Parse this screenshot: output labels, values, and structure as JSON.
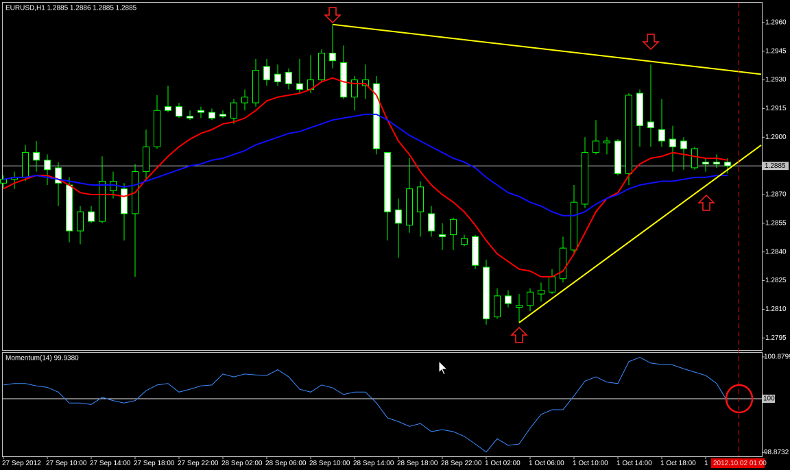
{
  "chart_data": [
    {
      "type": "candlestick",
      "title": "EURUSD,H1  1.2885 1.2886 1.2885 1.2885",
      "categories": [
        "27 Sep 2012",
        null,
        null,
        null,
        "27 Sep 10:00",
        null,
        null,
        null,
        "27 Sep 14:00",
        null,
        null,
        null,
        "27 Sep 18:00",
        null,
        null,
        null,
        "27 Sep 22:00",
        null,
        null,
        null,
        "28 Sep 02:00",
        null,
        null,
        null,
        "28 Sep 06:00",
        null,
        null,
        null,
        "28 Sep 10:00",
        null,
        null,
        null,
        "28 Sep 14:00",
        null,
        null,
        null,
        "28 Sep 18:00",
        null,
        null,
        null,
        "28 Sep 22:00",
        null,
        null,
        null,
        "1 Oct 02:00",
        null,
        null,
        null,
        "1 Oct 06:00",
        null,
        null,
        null,
        "1 Oct 10:00",
        null,
        null,
        null,
        "1 Oct 14:00",
        null,
        null,
        null,
        "1 Oct 18:00",
        null,
        null,
        null,
        "1",
        null,
        null
      ],
      "open": [
        1.2876,
        1.2878,
        1.2879,
        1.2892,
        1.2888,
        1.2884,
        1.2875,
        1.2851,
        1.2861,
        1.2856,
        1.2872,
        1.2873,
        1.286,
        1.2882,
        1.2895,
        1.2916,
        1.2916,
        1.2911,
        1.2914,
        1.2913,
        1.2912,
        1.291,
        1.2918,
        1.2918,
        1.2937,
        1.2933,
        1.2934,
        1.2928,
        1.2925,
        1.293,
        1.2944,
        1.2939,
        1.2921,
        1.2927,
        1.2928,
        1.2892,
        1.2862,
        1.2854,
        1.2861,
        1.286,
        1.2849,
        1.2849,
        1.2844,
        1.2848,
        1.2832,
        1.2806,
        1.2817,
        1.2811,
        1.2812,
        1.2818,
        1.2819,
        1.2826,
        1.2841,
        1.2865,
        1.2892,
        1.2897,
        1.2898,
        1.2881,
        1.2923,
        1.2908,
        1.2904,
        1.2899,
        1.2898,
        1.2884,
        1.2887,
        1.2887,
        1.2887
      ],
      "high": [
        1.288,
        1.2882,
        1.2896,
        1.2898,
        1.2891,
        1.2887,
        1.2879,
        1.2864,
        1.2864,
        1.289,
        1.2882,
        1.2876,
        1.2886,
        1.2904,
        1.2922,
        1.2927,
        1.2918,
        1.2914,
        1.2916,
        1.2915,
        1.2914,
        1.292,
        1.2925,
        1.2941,
        1.2941,
        1.2938,
        1.2936,
        1.2941,
        1.2943,
        1.2946,
        1.2959,
        1.2948,
        1.2932,
        1.2938,
        1.2932,
        1.2892,
        1.2868,
        1.2889,
        1.2877,
        1.2864,
        1.2855,
        1.2858,
        1.2849,
        1.2849,
        1.2836,
        1.2821,
        1.282,
        1.2818,
        1.2821,
        1.2824,
        1.2831,
        1.2848,
        1.2875,
        1.29,
        1.2909,
        1.29,
        1.2899,
        1.2923,
        1.2925,
        1.2938,
        1.292,
        1.2906,
        1.29,
        1.2895,
        1.2889,
        1.2891,
        1.2889
      ],
      "low": [
        1.2873,
        1.2873,
        1.2877,
        1.2882,
        1.2875,
        1.2864,
        1.2845,
        1.2844,
        1.2855,
        1.2855,
        1.2868,
        1.2846,
        1.2827,
        1.2877,
        1.2894,
        1.2913,
        1.291,
        1.2909,
        1.291,
        1.2909,
        1.291,
        1.2907,
        1.2914,
        1.2916,
        1.2927,
        1.2927,
        1.2925,
        1.2923,
        1.2923,
        1.2929,
        1.2936,
        1.292,
        1.2914,
        1.292,
        1.2891,
        1.2846,
        1.2837,
        1.285,
        1.2848,
        1.2848,
        1.2841,
        1.2841,
        1.2843,
        1.2831,
        1.2802,
        1.2805,
        1.2811,
        1.2803,
        1.2809,
        1.2814,
        1.2818,
        1.2824,
        1.2839,
        1.2863,
        1.2891,
        1.2891,
        1.288,
        1.2875,
        1.2895,
        1.2895,
        1.2895,
        1.2882,
        1.2883,
        1.2883,
        1.2882,
        1.2884,
        1.2881
      ],
      "close": [
        1.2878,
        1.2879,
        1.2892,
        1.2888,
        1.2883,
        1.2876,
        1.2851,
        1.2861,
        1.2856,
        1.2877,
        1.2877,
        1.286,
        1.2882,
        1.2895,
        1.2914,
        1.2914,
        1.2911,
        1.291,
        1.2913,
        1.291,
        1.2911,
        1.2918,
        1.2921,
        1.2935,
        1.293,
        1.2929,
        1.2928,
        1.2925,
        1.293,
        1.2944,
        1.294,
        1.2921,
        1.293,
        1.293,
        1.2894,
        1.2861,
        1.2855,
        1.2873,
        1.2874,
        1.2851,
        1.2848,
        1.2857,
        1.2847,
        1.2833,
        1.2805,
        1.2817,
        1.2813,
        1.2812,
        1.2819,
        1.282,
        1.2827,
        1.2842,
        1.2866,
        1.2892,
        1.2898,
        1.2898,
        1.2881,
        1.2922,
        1.2906,
        1.2905,
        1.2898,
        1.2895,
        1.2894,
        1.2894,
        1.2886,
        1.2886,
        1.2885
      ],
      "up_color": "#000000",
      "down_color": "#ffffff",
      "wick_color": "#00ff00",
      "overlays": [
        {
          "color": "#ff0000",
          "values": [
            1.2873,
            1.2876,
            1.2878,
            1.288,
            1.288,
            1.2878,
            1.2875,
            1.2871,
            1.287,
            1.287,
            1.287,
            1.2869,
            1.2871,
            1.2878,
            1.2884,
            1.289,
            1.2895,
            1.2899,
            1.2902,
            1.2904,
            1.2907,
            1.2908,
            1.291,
            1.2914,
            1.2919,
            1.2921,
            1.2922,
            1.2923,
            1.2925,
            1.2929,
            1.2931,
            1.2929,
            1.2928,
            1.2928,
            1.2922,
            1.2909,
            1.2898,
            1.2891,
            1.2882,
            1.2875,
            1.287,
            1.2866,
            1.2861,
            1.2854,
            1.2846,
            1.2839,
            1.2835,
            1.2831,
            1.283,
            1.2827,
            1.2827,
            1.283,
            1.2839,
            1.285,
            1.2861,
            1.2868,
            1.2871,
            1.288,
            1.2886,
            1.2889,
            1.289,
            1.2892,
            1.2891,
            1.289,
            1.2889,
            1.2889,
            1.2888
          ]
        },
        {
          "color": "#1010ff",
          "values": [
            1.2878,
            1.2879,
            1.2879,
            1.288,
            1.2879,
            1.2878,
            1.2877,
            1.2876,
            1.2875,
            1.2875,
            1.2875,
            1.2874,
            1.2875,
            1.2877,
            1.2879,
            1.2881,
            1.2883,
            1.2885,
            1.2886,
            1.2888,
            1.2889,
            1.2891,
            1.2893,
            1.2896,
            1.2898,
            1.29,
            1.2902,
            1.2903,
            1.2905,
            1.2907,
            1.2909,
            1.291,
            1.2911,
            1.2912,
            1.2912,
            1.2909,
            1.2905,
            1.2901,
            1.2898,
            1.2895,
            1.2892,
            1.2889,
            1.2887,
            1.2884,
            1.2879,
            1.2875,
            1.2871,
            1.2869,
            1.2866,
            1.2864,
            1.2861,
            1.2859,
            1.2859,
            1.2861,
            1.2865,
            1.2868,
            1.287,
            1.2873,
            1.2875,
            1.2876,
            1.2877,
            1.2877,
            1.2878,
            1.2879,
            1.2879,
            1.288,
            1.288
          ]
        }
      ],
      "trendlines": [
        {
          "color": "#ffff00",
          "from": [
            30,
            1.2959
          ],
          "to": [
            66,
            1.2935
          ]
        },
        {
          "color": "#ffff00",
          "from": [
            47,
            1.2803
          ],
          "to": [
            66,
            1.2883
          ]
        }
      ],
      "ylim": [
        1.2789,
        1.297
      ],
      "yticks": [
        {
          "value": 1.296,
          "label": "1.2960"
        },
        1.2945,
        {
          "value": 1.293,
          "label": "1.2930"
        },
        1.2915,
        {
          "value": 1.29,
          "label": "1.2900"
        },
        {
          "value": 1.287,
          "label": "1.2870"
        },
        1.2855,
        {
          "value": 1.284,
          "label": "1.2840"
        },
        1.2825,
        {
          "value": 1.281,
          "label": "1.2810"
        },
        1.2795
      ],
      "bid": 1.2885,
      "time_label": "2012.10.02 01:00"
    },
    {
      "type": "line",
      "title": "Momentum(14) 99.9380",
      "color": "#3c8cff",
      "values": [
        100.29,
        100.32,
        100.32,
        100.27,
        100.24,
        100.14,
        99.91,
        99.91,
        99.88,
        100.03,
        99.96,
        99.91,
        99.96,
        100.17,
        100.29,
        100.32,
        100.14,
        100.2,
        100.27,
        100.29,
        100.52,
        100.46,
        100.52,
        100.5,
        100.49,
        100.61,
        100.46,
        100.2,
        100.14,
        100.29,
        100.23,
        100.09,
        100.14,
        100.14,
        99.91,
        99.6,
        99.52,
        99.42,
        99.48,
        99.31,
        99.35,
        99.31,
        99.21,
        99.05,
        98.88,
        99.16,
        99.02,
        99.05,
        99.38,
        99.67,
        99.77,
        99.77,
        100.06,
        100.37,
        100.46,
        100.35,
        100.32,
        100.78,
        100.87,
        100.75,
        100.72,
        100.71,
        100.63,
        100.56,
        100.49,
        100.32,
        99.938
      ],
      "ylim": [
        98.82,
        100.95
      ],
      "yticks": [
        100.8799,
        100,
        98.8732
      ]
    }
  ]
}
